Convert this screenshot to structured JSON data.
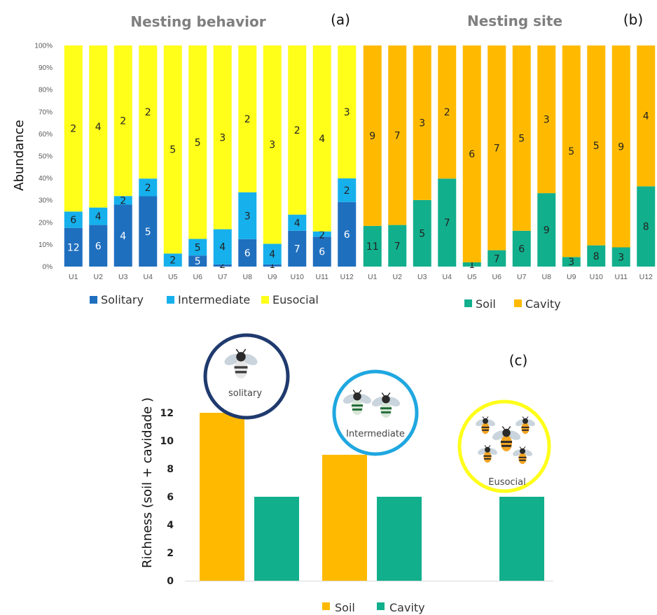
{
  "colors": {
    "solitary": "#1F6FBF",
    "intermediate": "#16B0EC",
    "eusocial": "#FFFF1A",
    "soil": "#12AF8C",
    "cavity": "#FFBA00",
    "tick_text": "#595959"
  },
  "chart_data": [
    {
      "id": "a",
      "type": "bar",
      "stacked": "percent",
      "title": "Nesting behavior",
      "panel_label": "(a)",
      "ylabel": "Abundance",
      "ylim": [
        0,
        100
      ],
      "yticks": [
        "0%",
        "10%",
        "20%",
        "30%",
        "40%",
        "50%",
        "60%",
        "70%",
        "80%",
        "90%",
        "100%"
      ],
      "categories": [
        "U1",
        "U2",
        "U3",
        "U4",
        "U5",
        "U6",
        "U7",
        "U8",
        "U9",
        "U10",
        "U11",
        "U12"
      ],
      "series": [
        {
          "name": "Solitary",
          "color": "#1F6FBF",
          "values": [
            17.5,
            18.8,
            28.0,
            31.8,
            0.0,
            5.0,
            1.0,
            12.4,
            1.0,
            16.2,
            13.5,
            29.2
          ],
          "labels": [
            "12",
            "6",
            "4",
            "5",
            "",
            "5",
            "2",
            "6",
            "1",
            "7",
            "6",
            "6"
          ]
        },
        {
          "name": "Intermediate",
          "color": "#16B0EC",
          "values": [
            7.4,
            7.9,
            3.9,
            8.0,
            5.9,
            7.5,
            15.9,
            21.2,
            9.3,
            7.3,
            2.4,
            10.7
          ],
          "labels": [
            "6",
            "4",
            "2",
            "2",
            "2",
            "5",
            "4",
            "3",
            "4",
            "4",
            "2",
            "2"
          ]
        },
        {
          "name": "Eusocial",
          "color": "#FFFF1A",
          "values": [
            75.1,
            73.3,
            68.1,
            60.2,
            94.1,
            87.5,
            83.1,
            66.4,
            89.7,
            76.5,
            84.1,
            60.1
          ],
          "labels": [
            "2",
            "4",
            "2",
            "2",
            "5",
            "5",
            "3",
            "2",
            "3",
            "2",
            "4",
            "3"
          ]
        }
      ]
    },
    {
      "id": "b",
      "type": "bar",
      "stacked": "percent",
      "title": "Nesting site",
      "panel_label": "(b)",
      "ylim": [
        0,
        100
      ],
      "categories": [
        "U1",
        "U2",
        "U3",
        "U4",
        "U5",
        "U6",
        "U7",
        "U8",
        "U9",
        "U10",
        "U11",
        "U12"
      ],
      "series": [
        {
          "name": "Soil",
          "color": "#12AF8C",
          "values": [
            18.4,
            18.8,
            30.1,
            39.8,
            1.9,
            7.4,
            16.2,
            33.2,
            4.3,
            9.6,
            8.7,
            36.3
          ],
          "labels": [
            "11",
            "7",
            "5",
            "7",
            "1",
            "7",
            "6",
            "9",
            "3",
            "8",
            "3",
            "8"
          ]
        },
        {
          "name": "Cavity",
          "color": "#FFBA00",
          "values": [
            81.6,
            81.2,
            69.9,
            60.2,
            98.1,
            92.6,
            83.8,
            66.8,
            95.7,
            90.4,
            91.3,
            63.7
          ],
          "labels": [
            "9",
            "7",
            "3",
            "2",
            "6",
            "7",
            "5",
            "3",
            "5",
            "5",
            "9",
            "4"
          ]
        }
      ]
    },
    {
      "id": "c",
      "type": "bar",
      "panel_label": "(c)",
      "ylabel": "Richness (soil + cavidade )",
      "ylim": [
        0,
        12
      ],
      "yticks": [
        "0",
        "2",
        "4",
        "6",
        "8",
        "10",
        "12"
      ],
      "groups": [
        {
          "icon_label": "solitary",
          "soil": 12,
          "cavity": 6
        },
        {
          "icon_label": "Intermediate",
          "soil": 9,
          "cavity": 6
        },
        {
          "icon_label": "Eusocial",
          "soil": 0,
          "cavity": 6
        }
      ],
      "series": [
        {
          "name": "Soil",
          "color": "#FFBA00",
          "values": [
            12,
            9,
            0
          ]
        },
        {
          "name": "Cavity",
          "color": "#12AF8C",
          "values": [
            6,
            6,
            6
          ]
        }
      ]
    }
  ]
}
